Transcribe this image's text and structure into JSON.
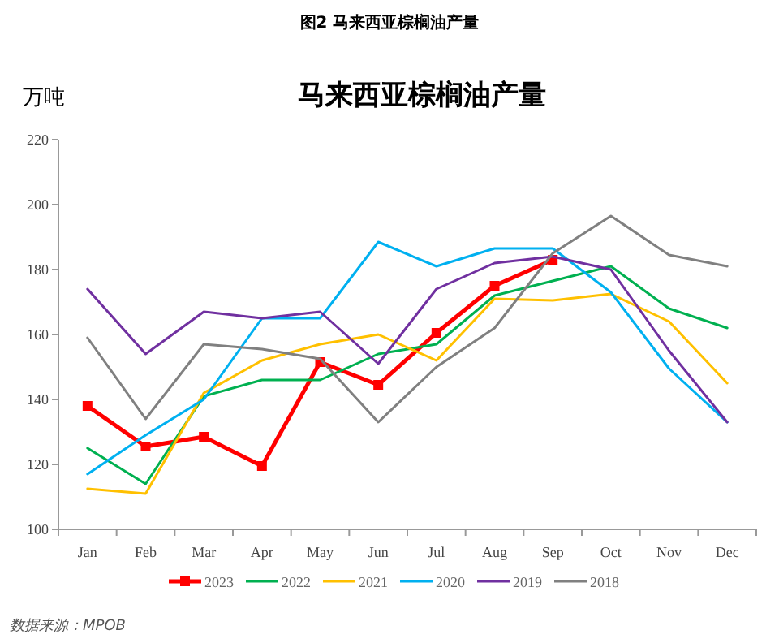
{
  "chart_data": {
    "type": "line",
    "title": "图2 马来西亚棕榈油产量",
    "subtitle": "马来西亚棕榈油产量",
    "ylabel": "万吨",
    "categories": [
      "Jan",
      "Feb",
      "Mar",
      "Apr",
      "May",
      "Jun",
      "Jul",
      "Aug",
      "Sep",
      "Oct",
      "Nov",
      "Dec"
    ],
    "series": [
      {
        "name": "2023",
        "color": "#ff0000",
        "marker": "square",
        "values": [
          138,
          125.5,
          128.5,
          119.5,
          151.5,
          144.5,
          160.5,
          175,
          183,
          null,
          null,
          null
        ]
      },
      {
        "name": "2022",
        "color": "#00b050",
        "values": [
          125,
          114,
          141,
          146,
          146,
          154,
          157,
          172,
          176.5,
          181,
          168,
          162
        ]
      },
      {
        "name": "2021",
        "color": "#ffc000",
        "values": [
          112.5,
          111,
          142,
          152,
          157,
          160,
          152,
          171,
          170.5,
          172.5,
          164,
          145
        ]
      },
      {
        "name": "2020",
        "color": "#00b0f0",
        "values": [
          117,
          129,
          140,
          165,
          165,
          188.5,
          181,
          186.5,
          186.5,
          173,
          149.5,
          133
        ]
      },
      {
        "name": "2019",
        "color": "#7030a0",
        "values": [
          174,
          154,
          167,
          165,
          167,
          151,
          174,
          182,
          184,
          180,
          155,
          133
        ]
      },
      {
        "name": "2018",
        "color": "#808080",
        "values": [
          159,
          134,
          157,
          155.5,
          152.5,
          133,
          150,
          162,
          185,
          196.5,
          184.5,
          181
        ]
      }
    ],
    "ylim": [
      100,
      220
    ],
    "yticks": [
      100,
      120,
      140,
      160,
      180,
      200,
      220
    ],
    "grid": false,
    "legend": "bottom",
    "annotations": [
      "数据来源：MPOB"
    ]
  }
}
